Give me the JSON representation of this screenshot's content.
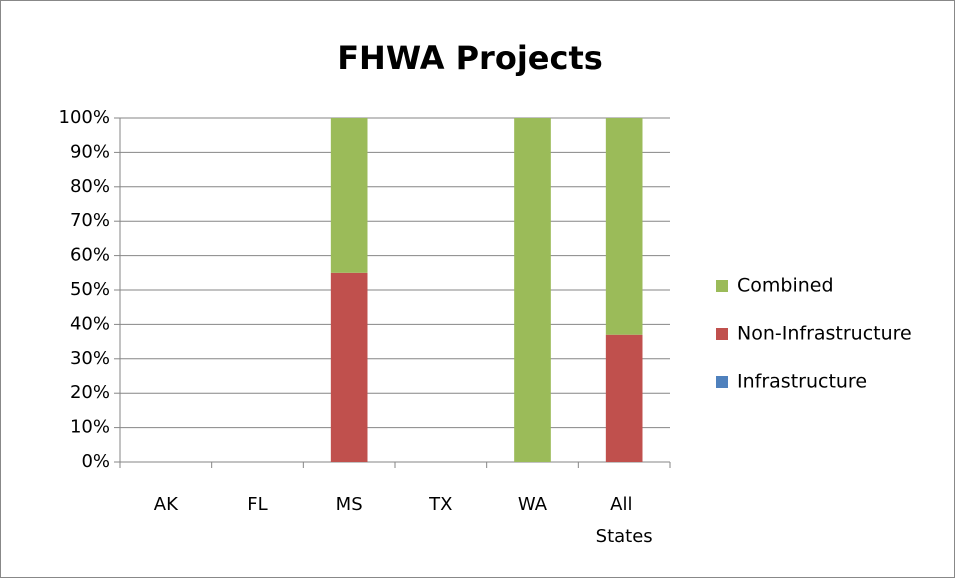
{
  "chart_data": {
    "type": "stacked_bar",
    "title": "FHWA Projects",
    "categories": [
      "AK",
      "FL",
      "MS",
      "TX",
      "WA",
      "All States"
    ],
    "series": [
      {
        "name": "Infrastructure",
        "color": "#4f81bd",
        "values": [
          0,
          0,
          0,
          0,
          0,
          0
        ]
      },
      {
        "name": "Non-Infrastructure",
        "color": "#c0504d",
        "values": [
          0,
          0,
          55,
          0,
          0,
          37
        ]
      },
      {
        "name": "Combined",
        "color": "#9bbb59",
        "values": [
          0,
          0,
          45,
          0,
          100,
          63
        ]
      }
    ],
    "ylim": [
      0,
      100
    ],
    "yticks": [
      {
        "value": 0,
        "label": "0%"
      },
      {
        "value": 10,
        "label": "10%"
      },
      {
        "value": 20,
        "label": "20%"
      },
      {
        "value": 30,
        "label": "30%"
      },
      {
        "value": 40,
        "label": "40%"
      },
      {
        "value": 50,
        "label": "50%"
      },
      {
        "value": 60,
        "label": "60%"
      },
      {
        "value": 70,
        "label": "70%"
      },
      {
        "value": 80,
        "label": "80%"
      },
      {
        "value": 90,
        "label": "90%"
      },
      {
        "value": 100,
        "label": "100%"
      }
    ],
    "grid": true,
    "legend": "right"
  }
}
